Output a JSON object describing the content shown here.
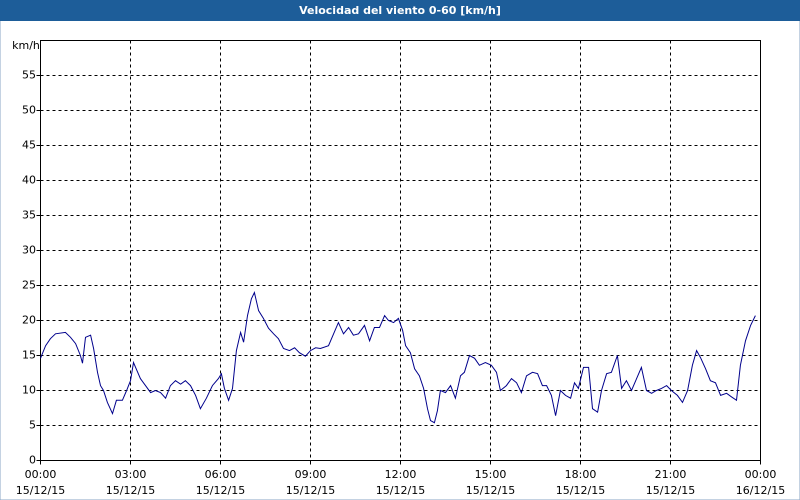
{
  "chart_data": {
    "type": "line",
    "title": "Velocidad del viento 0-60 [km/h]",
    "y_label": "km/h",
    "xlim": [
      0,
      24
    ],
    "xticks": [
      {
        "value": 0,
        "label": "00:00"
      },
      {
        "value": 3,
        "label": "03:00"
      },
      {
        "value": 6,
        "label": "06:00"
      },
      {
        "value": 9,
        "label": "09:00"
      },
      {
        "value": 12,
        "label": "12:00"
      },
      {
        "value": 15,
        "label": "15:00"
      },
      {
        "value": 18,
        "label": "18:00"
      },
      {
        "value": 21,
        "label": "21:00"
      },
      {
        "value": 24,
        "label": "00:00"
      }
    ],
    "xtick_dates": [
      "15/12/15",
      "15/12/15",
      "15/12/15",
      "15/12/15",
      "15/12/15",
      "15/12/15",
      "15/12/15",
      "15/12/15",
      "16/12/15"
    ],
    "ylim": [
      0,
      60
    ],
    "yticks": [
      0,
      5,
      10,
      15,
      20,
      25,
      30,
      35,
      40,
      45,
      50,
      55
    ],
    "grid": true,
    "x": [
      0,
      0.17,
      0.33,
      0.5,
      0.83,
      1,
      1.17,
      1.33,
      1.4,
      1.5,
      1.67,
      1.77,
      1.9,
      2,
      2.1,
      2.23,
      2.4,
      2.53,
      2.73,
      2.87,
      3,
      3.1,
      3.33,
      3.5,
      3.67,
      3.83,
      4,
      4.17,
      4.33,
      4.5,
      4.67,
      4.83,
      5,
      5.17,
      5.33,
      5.53,
      5.73,
      5.93,
      6.03,
      6.13,
      6.27,
      6.4,
      6.53,
      6.67,
      6.77,
      6.9,
      7.03,
      7.13,
      7.27,
      7.43,
      7.6,
      7.77,
      7.93,
      8.1,
      8.3,
      8.47,
      8.63,
      8.83,
      9,
      9.17,
      9.33,
      9.6,
      9.77,
      9.93,
      10.1,
      10.27,
      10.43,
      10.6,
      10.8,
      10.97,
      11.13,
      11.3,
      11.47,
      11.6,
      11.77,
      11.93,
      12.07,
      12.17,
      12.33,
      12.47,
      12.63,
      12.77,
      12.9,
      13,
      13.13,
      13.23,
      13.33,
      13.5,
      13.67,
      13.83,
      14,
      14.13,
      14.3,
      14.47,
      14.63,
      14.83,
      15.03,
      15.2,
      15.33,
      15.53,
      15.7,
      15.87,
      16.03,
      16.2,
      16.4,
      16.57,
      16.73,
      16.87,
      17.03,
      17.17,
      17.33,
      17.5,
      17.67,
      17.8,
      17.93,
      18.1,
      18.27,
      18.4,
      18.57,
      18.7,
      18.87,
      19.03,
      19.23,
      19.37,
      19.53,
      19.7,
      19.87,
      20.03,
      20.2,
      20.37,
      20.53,
      20.7,
      20.87,
      21.03,
      21.23,
      21.4,
      21.57,
      21.73,
      21.87,
      22,
      22.17,
      22.33,
      22.5,
      22.67,
      22.87,
      23.03,
      23.2,
      23.33,
      23.5,
      23.67,
      23.83
    ],
    "series": [
      {
        "name": "Velocidad del viento",
        "color": "#00008c",
        "values": [
          14.6,
          16.4,
          17.4,
          18.1,
          18.3,
          17.6,
          16.7,
          15,
          13.9,
          17.6,
          17.9,
          16,
          12.6,
          10.7,
          10,
          8.3,
          6.7,
          8.6,
          8.6,
          10,
          11.4,
          14,
          11.7,
          10.7,
          9.7,
          10,
          9.7,
          8.9,
          10.7,
          11.4,
          10.9,
          11.4,
          10.7,
          9.3,
          7.4,
          8.9,
          10.7,
          11.7,
          12.4,
          10.3,
          8.6,
          10.3,
          15.7,
          18.3,
          16.9,
          20.7,
          23.1,
          24,
          21.4,
          20.3,
          18.9,
          18.1,
          17.4,
          16,
          15.7,
          16.1,
          15.4,
          14.9,
          15.7,
          16.1,
          16,
          16.4,
          18.1,
          19.7,
          18.1,
          19,
          17.9,
          18.1,
          19.3,
          17.1,
          19,
          19,
          20.7,
          20,
          19.7,
          20.3,
          18.6,
          16.4,
          15.4,
          13.1,
          12.1,
          10.3,
          7.4,
          5.7,
          5.4,
          7.1,
          10,
          9.7,
          10.7,
          8.9,
          12.1,
          12.6,
          15,
          14.6,
          13.6,
          14,
          13.6,
          12.6,
          10,
          10.7,
          11.7,
          11.1,
          9.7,
          12.1,
          12.6,
          12.4,
          10.7,
          10.7,
          9.3,
          6.4,
          10,
          9.3,
          8.9,
          11.1,
          10.3,
          13.3,
          13.3,
          7.4,
          6.9,
          10,
          12.4,
          12.6,
          15,
          10.3,
          11.4,
          10,
          11.7,
          13.3,
          10,
          9.6,
          10,
          10.3,
          10.7,
          10,
          9.3,
          8.3,
          10,
          13.6,
          15.7,
          14.7,
          13.1,
          11.4,
          11.1,
          9.3,
          9.6,
          9.1,
          8.6,
          13.6,
          17.1,
          19.3,
          20.7
        ]
      }
    ]
  }
}
